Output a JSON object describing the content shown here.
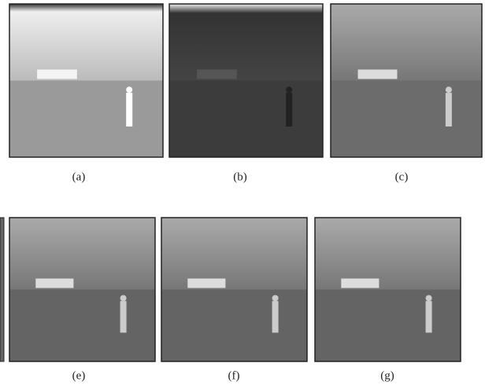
{
  "figure": {
    "panels": [
      {
        "label": "(a)"
      },
      {
        "label": "(b)"
      },
      {
        "label": "(c)"
      },
      {
        "label": "(e)"
      },
      {
        "label": "(f)"
      },
      {
        "label": "(g)"
      }
    ]
  }
}
